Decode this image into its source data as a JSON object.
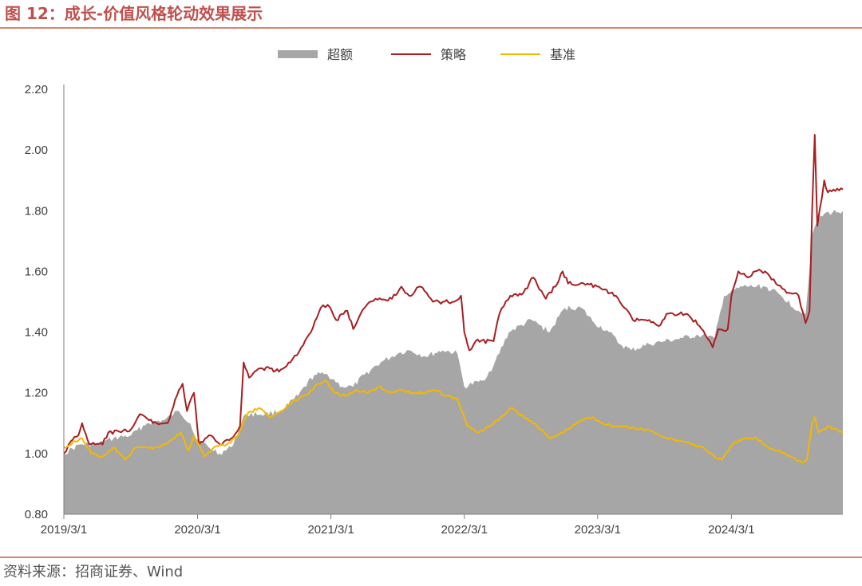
{
  "header": {
    "figure_title": "图 12：成长-价值风格轮动效果展示"
  },
  "footer": {
    "source": "资料来源：招商证券、Wind"
  },
  "chart_data": {
    "type": "line",
    "title": "",
    "xlabel": "",
    "ylabel": "",
    "ylim": [
      0.8,
      2.2
    ],
    "yticks": [
      "0.80",
      "1.00",
      "1.20",
      "1.40",
      "1.60",
      "1.80",
      "2.00",
      "2.20"
    ],
    "xticks": [
      "2019/3/1",
      "2020/3/1",
      "2021/3/1",
      "2022/3/1",
      "2023/3/1",
      "2024/3/1"
    ],
    "xrange": [
      "2019-03-01",
      "2024-12-31"
    ],
    "legend_position": "top-center",
    "grid": false,
    "colors": {
      "excess": "#a6a6a6",
      "strategy": "#a81e22",
      "benchmark": "#f4b800",
      "axis": "#808080"
    },
    "series": [
      {
        "name": "超额",
        "kind": "area",
        "points": [
          [
            "2019-03-01",
            1.0
          ],
          [
            "2019-04-15",
            1.03
          ],
          [
            "2019-06-01",
            1.03
          ],
          [
            "2019-07-15",
            1.05
          ],
          [
            "2019-09-01",
            1.06
          ],
          [
            "2019-10-15",
            1.1
          ],
          [
            "2019-12-01",
            1.11
          ],
          [
            "2020-01-10",
            1.14
          ],
          [
            "2020-02-10",
            1.1
          ],
          [
            "2020-02-25",
            1.05
          ],
          [
            "2020-04-01",
            1.02
          ],
          [
            "2020-05-01",
            1.0
          ],
          [
            "2020-06-01",
            1.02
          ],
          [
            "2020-07-10",
            1.13
          ],
          [
            "2020-09-01",
            1.13
          ],
          [
            "2020-10-15",
            1.14
          ],
          [
            "2020-12-01",
            1.19
          ],
          [
            "2021-01-15",
            1.26
          ],
          [
            "2021-02-20",
            1.26
          ],
          [
            "2021-04-01",
            1.22
          ],
          [
            "2021-05-01",
            1.22
          ],
          [
            "2021-06-01",
            1.26
          ],
          [
            "2021-07-15",
            1.3
          ],
          [
            "2021-09-01",
            1.33
          ],
          [
            "2021-10-01",
            1.34
          ],
          [
            "2021-11-15",
            1.32
          ],
          [
            "2022-01-01",
            1.34
          ],
          [
            "2022-02-10",
            1.33
          ],
          [
            "2022-03-01",
            1.22
          ],
          [
            "2022-04-20",
            1.24
          ],
          [
            "2022-05-20",
            1.29
          ],
          [
            "2022-07-01",
            1.4
          ],
          [
            "2022-09-01",
            1.44
          ],
          [
            "2022-10-20",
            1.4
          ],
          [
            "2022-12-01",
            1.48
          ],
          [
            "2023-01-15",
            1.48
          ],
          [
            "2023-02-20",
            1.43
          ],
          [
            "2023-04-01",
            1.4
          ],
          [
            "2023-05-01",
            1.36
          ],
          [
            "2023-06-01",
            1.34
          ],
          [
            "2023-07-20",
            1.36
          ],
          [
            "2023-09-01",
            1.37
          ],
          [
            "2023-10-20",
            1.38
          ],
          [
            "2023-12-01",
            1.39
          ],
          [
            "2024-01-15",
            1.38
          ],
          [
            "2024-02-10",
            1.52
          ],
          [
            "2024-04-01",
            1.55
          ],
          [
            "2024-06-01",
            1.55
          ],
          [
            "2024-07-15",
            1.52
          ],
          [
            "2024-09-01",
            1.47
          ],
          [
            "2024-09-20",
            1.46
          ],
          [
            "2024-10-08",
            1.72
          ],
          [
            "2024-10-20",
            1.76
          ],
          [
            "2024-11-10",
            1.79
          ],
          [
            "2024-12-31",
            1.8
          ]
        ]
      },
      {
        "name": "策略",
        "kind": "line",
        "points": [
          [
            "2019-03-01",
            1.0
          ],
          [
            "2019-03-20",
            1.04
          ],
          [
            "2019-04-10",
            1.06
          ],
          [
            "2019-04-20",
            1.1
          ],
          [
            "2019-05-10",
            1.03
          ],
          [
            "2019-06-15",
            1.03
          ],
          [
            "2019-07-01",
            1.07
          ],
          [
            "2019-08-05",
            1.07
          ],
          [
            "2019-09-01",
            1.08
          ],
          [
            "2019-09-25",
            1.13
          ],
          [
            "2019-10-20",
            1.11
          ],
          [
            "2019-11-10",
            1.1
          ],
          [
            "2019-12-10",
            1.1
          ],
          [
            "2020-01-10",
            1.21
          ],
          [
            "2020-01-20",
            1.23
          ],
          [
            "2020-02-01",
            1.14
          ],
          [
            "2020-02-20",
            1.2
          ],
          [
            "2020-03-05",
            1.03
          ],
          [
            "2020-04-01",
            1.06
          ],
          [
            "2020-05-01",
            1.03
          ],
          [
            "2020-06-01",
            1.05
          ],
          [
            "2020-06-25",
            1.09
          ],
          [
            "2020-07-05",
            1.3
          ],
          [
            "2020-07-20",
            1.25
          ],
          [
            "2020-08-15",
            1.28
          ],
          [
            "2020-09-15",
            1.28
          ],
          [
            "2020-10-10",
            1.27
          ],
          [
            "2020-11-10",
            1.3
          ],
          [
            "2020-12-10",
            1.35
          ],
          [
            "2021-01-05",
            1.4
          ],
          [
            "2021-02-01",
            1.48
          ],
          [
            "2021-02-20",
            1.49
          ],
          [
            "2021-03-15",
            1.44
          ],
          [
            "2021-04-15",
            1.47
          ],
          [
            "2021-05-01",
            1.41
          ],
          [
            "2021-06-01",
            1.48
          ],
          [
            "2021-07-01",
            1.51
          ],
          [
            "2021-08-15",
            1.51
          ],
          [
            "2021-09-10",
            1.55
          ],
          [
            "2021-10-01",
            1.52
          ],
          [
            "2021-11-01",
            1.55
          ],
          [
            "2021-12-05",
            1.5
          ],
          [
            "2022-01-01",
            1.5
          ],
          [
            "2022-02-01",
            1.5
          ],
          [
            "2022-02-20",
            1.52
          ],
          [
            "2022-03-01",
            1.4
          ],
          [
            "2022-03-15",
            1.34
          ],
          [
            "2022-04-01",
            1.37
          ],
          [
            "2022-05-20",
            1.37
          ],
          [
            "2022-06-05",
            1.46
          ],
          [
            "2022-07-05",
            1.52
          ],
          [
            "2022-08-10",
            1.53
          ],
          [
            "2022-09-05",
            1.58
          ],
          [
            "2022-10-10",
            1.51
          ],
          [
            "2022-11-05",
            1.55
          ],
          [
            "2022-11-25",
            1.6
          ],
          [
            "2022-12-10",
            1.56
          ],
          [
            "2023-02-01",
            1.56
          ],
          [
            "2023-03-15",
            1.54
          ],
          [
            "2023-04-20",
            1.52
          ],
          [
            "2023-06-05",
            1.44
          ],
          [
            "2023-07-10",
            1.44
          ],
          [
            "2023-08-15",
            1.42
          ],
          [
            "2023-09-05",
            1.46
          ],
          [
            "2023-10-10",
            1.46
          ],
          [
            "2023-11-01",
            1.46
          ],
          [
            "2023-12-05",
            1.42
          ],
          [
            "2024-01-10",
            1.35
          ],
          [
            "2024-01-25",
            1.41
          ],
          [
            "2024-02-20",
            1.41
          ],
          [
            "2024-03-01",
            1.52
          ],
          [
            "2024-03-20",
            1.6
          ],
          [
            "2024-04-15",
            1.58
          ],
          [
            "2024-05-05",
            1.6
          ],
          [
            "2024-06-01",
            1.6
          ],
          [
            "2024-07-01",
            1.56
          ],
          [
            "2024-08-05",
            1.53
          ],
          [
            "2024-09-01",
            1.52
          ],
          [
            "2024-09-20",
            1.43
          ],
          [
            "2024-10-01",
            1.47
          ],
          [
            "2024-10-08",
            1.8
          ],
          [
            "2024-10-15",
            2.05
          ],
          [
            "2024-10-22",
            1.75
          ],
          [
            "2024-11-10",
            1.9
          ],
          [
            "2024-11-20",
            1.86
          ],
          [
            "2024-12-31",
            1.87
          ]
        ]
      },
      {
        "name": "基准",
        "kind": "line",
        "points": [
          [
            "2019-03-01",
            1.02
          ],
          [
            "2019-04-01",
            1.04
          ],
          [
            "2019-04-20",
            1.05
          ],
          [
            "2019-05-15",
            1.0
          ],
          [
            "2019-06-15",
            0.99
          ],
          [
            "2019-07-15",
            1.02
          ],
          [
            "2019-08-15",
            0.98
          ],
          [
            "2019-09-15",
            1.02
          ],
          [
            "2019-10-15",
            1.02
          ],
          [
            "2019-11-15",
            1.02
          ],
          [
            "2019-12-15",
            1.04
          ],
          [
            "2020-01-15",
            1.07
          ],
          [
            "2020-02-05",
            1.01
          ],
          [
            "2020-02-20",
            1.06
          ],
          [
            "2020-03-20",
            0.99
          ],
          [
            "2020-04-15",
            1.02
          ],
          [
            "2020-05-20",
            1.03
          ],
          [
            "2020-06-20",
            1.06
          ],
          [
            "2020-07-15",
            1.13
          ],
          [
            "2020-08-15",
            1.15
          ],
          [
            "2020-09-15",
            1.12
          ],
          [
            "2020-10-15",
            1.14
          ],
          [
            "2020-11-15",
            1.17
          ],
          [
            "2020-12-15",
            1.19
          ],
          [
            "2021-01-10",
            1.21
          ],
          [
            "2021-01-25",
            1.23
          ],
          [
            "2021-02-15",
            1.24
          ],
          [
            "2021-03-10",
            1.2
          ],
          [
            "2021-04-10",
            1.19
          ],
          [
            "2021-05-10",
            1.21
          ],
          [
            "2021-06-10",
            1.2
          ],
          [
            "2021-07-10",
            1.22
          ],
          [
            "2021-08-10",
            1.2
          ],
          [
            "2021-09-10",
            1.21
          ],
          [
            "2021-10-10",
            1.2
          ],
          [
            "2021-11-10",
            1.2
          ],
          [
            "2021-12-10",
            1.21
          ],
          [
            "2022-01-10",
            1.19
          ],
          [
            "2022-02-10",
            1.18
          ],
          [
            "2022-03-10",
            1.09
          ],
          [
            "2022-04-10",
            1.07
          ],
          [
            "2022-05-10",
            1.09
          ],
          [
            "2022-06-10",
            1.12
          ],
          [
            "2022-07-10",
            1.15
          ],
          [
            "2022-08-10",
            1.12
          ],
          [
            "2022-09-10",
            1.1
          ],
          [
            "2022-10-20",
            1.05
          ],
          [
            "2022-11-10",
            1.06
          ],
          [
            "2022-12-10",
            1.08
          ],
          [
            "2023-01-15",
            1.11
          ],
          [
            "2023-02-15",
            1.12
          ],
          [
            "2023-03-15",
            1.1
          ],
          [
            "2023-04-15",
            1.09
          ],
          [
            "2023-05-15",
            1.09
          ],
          [
            "2023-06-15",
            1.08
          ],
          [
            "2023-07-15",
            1.08
          ],
          [
            "2023-08-15",
            1.06
          ],
          [
            "2023-09-15",
            1.05
          ],
          [
            "2023-10-20",
            1.04
          ],
          [
            "2023-11-15",
            1.03
          ],
          [
            "2023-12-15",
            1.02
          ],
          [
            "2024-01-15",
            0.99
          ],
          [
            "2024-02-05",
            0.98
          ],
          [
            "2024-03-05",
            1.03
          ],
          [
            "2024-04-05",
            1.05
          ],
          [
            "2024-05-10",
            1.05
          ],
          [
            "2024-06-10",
            1.02
          ],
          [
            "2024-07-10",
            1.01
          ],
          [
            "2024-08-10",
            0.99
          ],
          [
            "2024-09-10",
            0.97
          ],
          [
            "2024-09-24",
            0.98
          ],
          [
            "2024-10-08",
            1.1
          ],
          [
            "2024-10-15",
            1.12
          ],
          [
            "2024-10-25",
            1.07
          ],
          [
            "2024-11-20",
            1.09
          ],
          [
            "2024-12-31",
            1.07
          ]
        ]
      }
    ]
  }
}
